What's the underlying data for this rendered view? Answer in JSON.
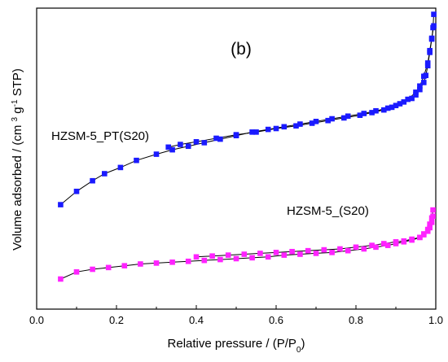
{
  "chart_data": {
    "type": "scatter",
    "panel_label": "(b)",
    "xlabel": "Relative pressure / (P/P0)",
    "ylabel": "Volume adsorbed / (cm³ g⁻¹ STP)",
    "xlim": [
      0.0,
      1.0
    ],
    "x_ticks": [
      "0.0",
      "0.2",
      "0.4",
      "0.6",
      "0.8",
      "1.0"
    ],
    "y_ticks_shown": false,
    "ylim": [
      0,
      340
    ],
    "series": [
      {
        "name": "HZSM-5_PT(S20)",
        "color": "#1a1aff",
        "marker": "square",
        "adsorption": {
          "x": [
            0.06,
            0.1,
            0.14,
            0.17,
            0.21,
            0.25,
            0.3,
            0.34,
            0.38,
            0.42,
            0.46,
            0.5,
            0.54,
            0.58,
            0.62,
            0.66,
            0.7,
            0.74,
            0.78,
            0.82,
            0.85,
            0.88,
            0.9,
            0.92,
            0.94,
            0.95,
            0.96,
            0.97,
            0.975,
            0.98,
            0.985,
            0.99,
            0.993,
            0.995
          ],
          "y": [
            118,
            133,
            145,
            153,
            160,
            168,
            175,
            180,
            184,
            188,
            192,
            196,
            200,
            203,
            206,
            209,
            212,
            215,
            218,
            221,
            224,
            227,
            230,
            234,
            238,
            242,
            248,
            256,
            264,
            275,
            290,
            305,
            318,
            333
          ]
        },
        "desorption": {
          "x": [
            0.995,
            0.99,
            0.985,
            0.98,
            0.97,
            0.96,
            0.95,
            0.93,
            0.91,
            0.89,
            0.87,
            0.84,
            0.81,
            0.77,
            0.73,
            0.69,
            0.65,
            0.6,
            0.55,
            0.5,
            0.45,
            0.4,
            0.36,
            0.33
          ],
          "y": [
            320,
            306,
            292,
            278,
            263,
            252,
            245,
            237,
            232,
            228,
            225,
            222,
            219,
            216,
            213,
            210,
            207,
            204,
            200,
            197,
            193,
            189,
            186,
            183
          ]
        }
      },
      {
        "name": "HZSM-5_(S20)",
        "color": "#ff22ff",
        "marker": "square",
        "adsorption": {
          "x": [
            0.06,
            0.1,
            0.14,
            0.18,
            0.22,
            0.26,
            0.3,
            0.34,
            0.38,
            0.42,
            0.46,
            0.5,
            0.54,
            0.58,
            0.62,
            0.66,
            0.7,
            0.74,
            0.78,
            0.82,
            0.85,
            0.88,
            0.9,
            0.92,
            0.94,
            0.96,
            0.97,
            0.98,
            0.985,
            0.99,
            0.993
          ],
          "y": [
            34,
            42,
            45,
            47,
            49,
            51,
            52,
            53,
            54,
            55,
            56,
            57,
            58,
            59,
            61,
            62,
            63,
            64,
            66,
            68,
            70,
            72,
            74,
            76,
            78,
            81,
            85,
            90,
            96,
            103,
            112
          ]
        },
        "desorption": {
          "x": [
            0.993,
            0.99,
            0.985,
            0.98,
            0.97,
            0.96,
            0.94,
            0.92,
            0.9,
            0.87,
            0.84,
            0.8,
            0.76,
            0.72,
            0.68,
            0.64,
            0.6,
            0.56,
            0.52,
            0.48,
            0.44,
            0.4
          ],
          "y": [
            105,
            98,
            92,
            88,
            84,
            81,
            79,
            77,
            76,
            74,
            72,
            70,
            68,
            67,
            66,
            65,
            64,
            63,
            62,
            61,
            60,
            59
          ]
        }
      }
    ]
  }
}
